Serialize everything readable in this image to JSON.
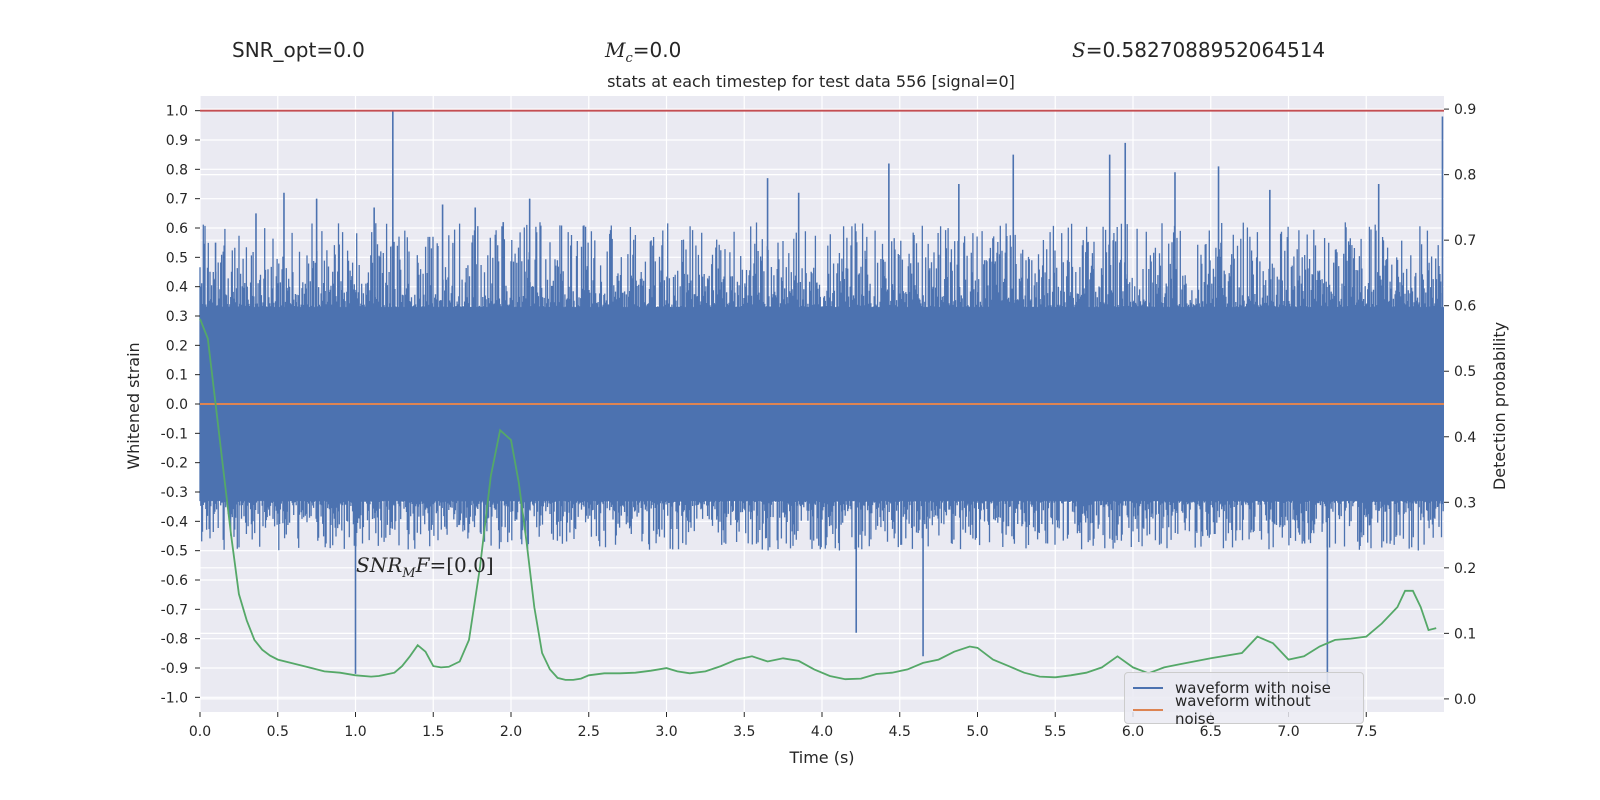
{
  "header": {
    "snr_opt": "SNR_opt=0.0",
    "mc_symbol": "M",
    "mc_sub": "c",
    "mc_value": "=0.0",
    "s_symbol": "S",
    "s_value": "=0.5827088952064514"
  },
  "annotation": {
    "snr_mf_base": "SNR",
    "snr_mf_sub": "M",
    "snr_mf_tail": "F",
    "snr_mf_value": "=[0.0]"
  },
  "chart_data": {
    "type": "line",
    "title": "stats at each timestep for test data 556 [signal=0]",
    "xlabel": "Time (s)",
    "ylabel_left": "Whitened strain",
    "ylabel_right": "Detection probability",
    "xlim": [
      0.0,
      8.0
    ],
    "ylim_left": [
      -1.05,
      1.05
    ],
    "ylim_right": [
      -0.02,
      0.92
    ],
    "xticks": [
      0.0,
      0.5,
      1.0,
      1.5,
      2.0,
      2.5,
      3.0,
      3.5,
      4.0,
      4.5,
      5.0,
      5.5,
      6.0,
      6.5,
      7.0,
      7.5
    ],
    "xtick_labels": [
      "0.0",
      "0.5",
      "1.0",
      "1.5",
      "2.0",
      "2.5",
      "3.0",
      "3.5",
      "4.0",
      "4.5",
      "5.0",
      "5.5",
      "6.0",
      "6.5",
      "7.0",
      "7.5"
    ],
    "yticks_left": [
      1.0,
      0.9,
      0.8,
      0.7,
      0.6,
      0.5,
      0.4,
      0.3,
      0.2,
      0.1,
      0.0,
      -0.1,
      -0.2,
      -0.3,
      -0.4,
      -0.5,
      -0.6,
      -0.7,
      -0.8,
      -0.9,
      -1.0
    ],
    "ytick_labels_left": [
      "1.0",
      "0.9",
      "0.8",
      "0.7",
      "0.6",
      "0.5",
      "0.4",
      "0.3",
      "0.2",
      "0.1",
      "0.0",
      "-0.1",
      "-0.2",
      "-0.3",
      "-0.4",
      "-0.5",
      "-0.6",
      "-0.7",
      "-0.8",
      "-0.9",
      "-1.0"
    ],
    "yticks_right": [
      0.9,
      0.8,
      0.7,
      0.6,
      0.5,
      0.4,
      0.3,
      0.2,
      0.1,
      0.0
    ],
    "ytick_labels_right": [
      "0.9",
      "0.8",
      "0.7",
      "0.6",
      "0.5",
      "0.4",
      "0.3",
      "0.2",
      "0.1",
      "0.0"
    ],
    "grid": true,
    "legend_position": "lower-right",
    "threshold": {
      "y": 1.0,
      "color": "#c44e52"
    },
    "series": [
      {
        "name": "waveform with noise",
        "color": "#4c72b0",
        "axis": "left",
        "style": "dense-noise",
        "core_band": [
          -0.33,
          0.33
        ],
        "typical_excursion": [
          -0.5,
          0.62
        ],
        "x": [
          0.1,
          0.36,
          0.54,
          0.75,
          1.0,
          1.12,
          1.24,
          1.56,
          1.77,
          1.95,
          2.12,
          3.65,
          3.85,
          4.22,
          4.43,
          4.65,
          4.88,
          5.23,
          5.85,
          5.95,
          6.27,
          6.55,
          6.88,
          7.25,
          7.58,
          7.99
        ],
        "peaks": [
          0.55,
          0.65,
          0.72,
          0.7,
          -0.92,
          0.67,
          1.0,
          0.68,
          0.67,
          0.62,
          0.7,
          0.77,
          0.72,
          -0.78,
          0.82,
          -0.86,
          0.75,
          0.85,
          0.85,
          0.89,
          0.79,
          0.81,
          0.73,
          -0.97,
          0.75,
          0.98
        ]
      },
      {
        "name": "waveform without noise",
        "color": "#dd8452",
        "axis": "left",
        "x": [
          0.0,
          8.0
        ],
        "y": [
          0.0,
          0.0
        ]
      },
      {
        "name": "",
        "color": "#55a868",
        "axis": "right",
        "x": [
          0.0,
          0.05,
          0.1,
          0.15,
          0.2,
          0.25,
          0.3,
          0.35,
          0.4,
          0.45,
          0.5,
          0.6,
          0.7,
          0.8,
          0.9,
          1.0,
          1.1,
          1.15,
          1.25,
          1.3,
          1.35,
          1.4,
          1.45,
          1.5,
          1.55,
          1.6,
          1.67,
          1.73,
          1.8,
          1.87,
          1.93,
          2.0,
          2.05,
          2.1,
          2.15,
          2.2,
          2.25,
          2.3,
          2.35,
          2.4,
          2.45,
          2.5,
          2.6,
          2.7,
          2.8,
          2.9,
          3.0,
          3.07,
          3.15,
          3.25,
          3.35,
          3.45,
          3.55,
          3.65,
          3.75,
          3.85,
          3.95,
          4.05,
          4.15,
          4.25,
          4.35,
          4.45,
          4.55,
          4.65,
          4.75,
          4.85,
          4.95,
          5.0,
          5.1,
          5.2,
          5.3,
          5.4,
          5.5,
          5.6,
          5.7,
          5.8,
          5.9,
          6.0,
          6.1,
          6.2,
          6.3,
          6.5,
          6.7,
          6.8,
          6.9,
          7.0,
          7.1,
          7.2,
          7.3,
          7.4,
          7.5,
          7.6,
          7.7,
          7.75,
          7.8,
          7.85,
          7.9,
          7.95
        ],
        "y": [
          0.58,
          0.55,
          0.45,
          0.35,
          0.25,
          0.16,
          0.12,
          0.09,
          0.075,
          0.066,
          0.06,
          0.054,
          0.048,
          0.042,
          0.04,
          0.036,
          0.034,
          0.035,
          0.04,
          0.05,
          0.065,
          0.082,
          0.072,
          0.05,
          0.048,
          0.049,
          0.057,
          0.09,
          0.2,
          0.34,
          0.41,
          0.395,
          0.33,
          0.24,
          0.14,
          0.07,
          0.045,
          0.032,
          0.029,
          0.029,
          0.031,
          0.036,
          0.039,
          0.039,
          0.04,
          0.043,
          0.047,
          0.042,
          0.039,
          0.042,
          0.05,
          0.06,
          0.065,
          0.057,
          0.062,
          0.058,
          0.045,
          0.035,
          0.03,
          0.031,
          0.038,
          0.04,
          0.045,
          0.055,
          0.06,
          0.072,
          0.08,
          0.078,
          0.06,
          0.05,
          0.04,
          0.034,
          0.033,
          0.036,
          0.04,
          0.048,
          0.065,
          0.048,
          0.039,
          0.048,
          0.053,
          0.062,
          0.07,
          0.095,
          0.085,
          0.06,
          0.065,
          0.08,
          0.09,
          0.092,
          0.095,
          0.115,
          0.14,
          0.165,
          0.165,
          0.14,
          0.105,
          0.108
        ]
      }
    ]
  }
}
